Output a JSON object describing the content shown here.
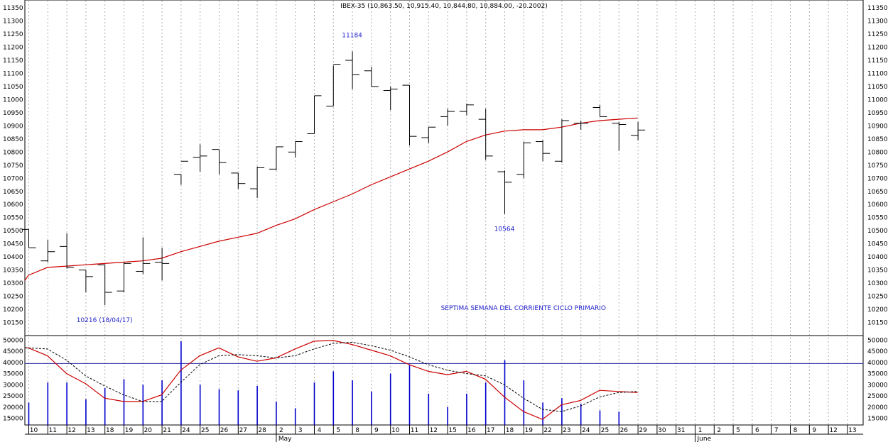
{
  "chart_data": [
    {
      "type": "ohlc",
      "title": "IBEX-35 (10,863.50, 10,915.40, 10,844.80, 10,884.00, -20.2002)",
      "price_ylim": [
        10100,
        11380
      ],
      "price_ticks": [
        10150,
        10200,
        10250,
        10300,
        10350,
        10400,
        10450,
        10500,
        10550,
        10600,
        10650,
        10700,
        10750,
        10800,
        10850,
        10900,
        10950,
        11000,
        11050,
        11100,
        11150,
        11200,
        11250,
        11300,
        11350
      ],
      "x_day_labels": [
        "10",
        "11",
        "12",
        "13",
        "18",
        "19",
        "20",
        "21",
        "24",
        "25",
        "26",
        "27",
        "28",
        "2",
        "3",
        "4",
        "5",
        "8",
        "9",
        "10",
        "11",
        "12",
        "15",
        "16",
        "17",
        "18",
        "19",
        "22",
        "23",
        "24",
        "25",
        "26",
        "29",
        "30",
        "31",
        "1",
        "2",
        "5",
        "6",
        "7",
        "8",
        "9",
        "12",
        "13"
      ],
      "x_month_labels": [
        {
          "label": "May",
          "at_index": 13
        },
        {
          "label": "June",
          "at_index": 35
        }
      ],
      "grid": "vertical dotted",
      "bars": [
        {
          "o": 10505,
          "h": 10505,
          "l": 10435,
          "c": 10435
        },
        {
          "o": 10385,
          "h": 10465,
          "l": 10380,
          "c": 10420
        },
        {
          "o": 10440,
          "h": 10490,
          "l": 10355,
          "c": 10360
        },
        {
          "o": 10350,
          "h": 10350,
          "l": 10265,
          "c": 10325
        },
        {
          "o": 10370,
          "h": 10370,
          "l": 10216,
          "c": 10265
        },
        {
          "o": 10270,
          "h": 10380,
          "l": 10265,
          "c": 10375
        },
        {
          "o": 10345,
          "h": 10475,
          "l": 10335,
          "c": 10375
        },
        {
          "o": 10380,
          "h": 10435,
          "l": 10310,
          "c": 10375
        },
        {
          "o": 10715,
          "h": 10715,
          "l": 10675,
          "c": 10765
        },
        {
          "o": 10780,
          "h": 10830,
          "l": 10725,
          "c": 10785
        },
        {
          "o": 10810,
          "h": 10810,
          "l": 10715,
          "c": 10760
        },
        {
          "o": 10720,
          "h": 10720,
          "l": 10660,
          "c": 10680
        },
        {
          "o": 10660,
          "h": 10745,
          "l": 10625,
          "c": 10740
        },
        {
          "o": 10735,
          "h": 10820,
          "l": 10730,
          "c": 10820
        },
        {
          "o": 10800,
          "h": 10840,
          "l": 10780,
          "c": 10840
        },
        {
          "o": 10870,
          "h": 11015,
          "l": 10870,
          "c": 11015
        },
        {
          "o": 10975,
          "h": 11130,
          "l": 10975,
          "c": 11135
        },
        {
          "o": 11150,
          "h": 11184,
          "l": 11040,
          "c": 11095
        },
        {
          "o": 11110,
          "h": 11125,
          "l": 11050,
          "c": 11050
        },
        {
          "o": 11035,
          "h": 11050,
          "l": 10960,
          "c": 11040
        },
        {
          "o": 11055,
          "h": 11055,
          "l": 10825,
          "c": 10860
        },
        {
          "o": 10855,
          "h": 10895,
          "l": 10835,
          "c": 10895
        },
        {
          "o": 10935,
          "h": 10965,
          "l": 10900,
          "c": 10955
        },
        {
          "o": 10955,
          "h": 10985,
          "l": 10940,
          "c": 10980
        },
        {
          "o": 10925,
          "h": 10965,
          "l": 10770,
          "c": 10785
        },
        {
          "o": 10725,
          "h": 10730,
          "l": 10564,
          "c": 10685
        },
        {
          "o": 10715,
          "h": 10840,
          "l": 10700,
          "c": 10835
        },
        {
          "o": 10840,
          "h": 10845,
          "l": 10765,
          "c": 10795
        },
        {
          "o": 10765,
          "h": 10925,
          "l": 10760,
          "c": 10920
        },
        {
          "o": 10910,
          "h": 10920,
          "l": 10885,
          "c": 10910
        },
        {
          "o": 10970,
          "h": 10980,
          "l": 10935,
          "c": 10935
        },
        {
          "o": 10910,
          "h": 10915,
          "l": 10805,
          "c": 10905
        },
        {
          "o": 10863.5,
          "h": 10915.4,
          "l": 10844.8,
          "c": 10884
        }
      ],
      "moving_average": {
        "color": "#cc0000",
        "values": [
          10330,
          10360,
          10365,
          10370,
          10375,
          10380,
          10385,
          10395,
          10420,
          10440,
          10460,
          10475,
          10490,
          10520,
          10545,
          10580,
          10610,
          10640,
          10675,
          10705,
          10735,
          10765,
          10800,
          10840,
          10865,
          10880,
          10885,
          10885,
          10895,
          10910,
          10920,
          10925,
          10930
        ]
      },
      "annotations": [
        {
          "text": "11184",
          "at_index": 17,
          "price": 11184,
          "position": "above",
          "color": "#2222cc"
        },
        {
          "text": "10564",
          "at_index": 25,
          "price": 10564,
          "position": "below",
          "color": "#2222cc"
        },
        {
          "text": "10216 (18/04/17)",
          "at_index": 4,
          "price": 10216,
          "position": "below",
          "color": "#2222cc"
        },
        {
          "text": "SEPTIMA SEMANA DEL CORRIENTE CICLO PRIMARIO",
          "at_index": 26,
          "price": 10205,
          "color": "#2222cc"
        }
      ]
    },
    {
      "type": "volume",
      "ylim": [
        12000,
        52000
      ],
      "yticks": [
        15000,
        20000,
        25000,
        30000,
        35000,
        40000,
        45000,
        50000
      ],
      "reference_line": {
        "value": 39500,
        "color": "#2222aa"
      },
      "values": [
        22000,
        31000,
        31000,
        23500,
        28500,
        32500,
        30000,
        32000,
        49500,
        30000,
        28000,
        27500,
        29500,
        22500,
        19500,
        31000,
        36000,
        32000,
        27000,
        35000,
        39000,
        26000,
        20000,
        26000,
        31000,
        41000,
        32000,
        22000,
        24000,
        21500,
        18500,
        18000,
        0
      ],
      "bar_color": "#0000cc",
      "oscillator": {
        "color": "#cc0000",
        "values": [
          46500,
          43000,
          35000,
          30500,
          24000,
          22500,
          22500,
          25500,
          36500,
          43000,
          46500,
          42500,
          40500,
          42000,
          46000,
          49500,
          49800,
          48000,
          45500,
          43000,
          39000,
          36000,
          34500,
          36000,
          32500,
          24500,
          18000,
          14500,
          21000,
          23000,
          27500,
          27000,
          26500
        ]
      },
      "signal": {
        "color": "#000000",
        "values": [
          46500,
          46000,
          41000,
          34000,
          29500,
          25500,
          22500,
          22500,
          31000,
          39000,
          43000,
          43500,
          43000,
          42000,
          43000,
          46000,
          48500,
          49000,
          47500,
          45500,
          42500,
          39000,
          36500,
          35000,
          34000,
          30000,
          24000,
          19000,
          18000,
          20500,
          24500,
          26500,
          27000
        ]
      }
    }
  ]
}
